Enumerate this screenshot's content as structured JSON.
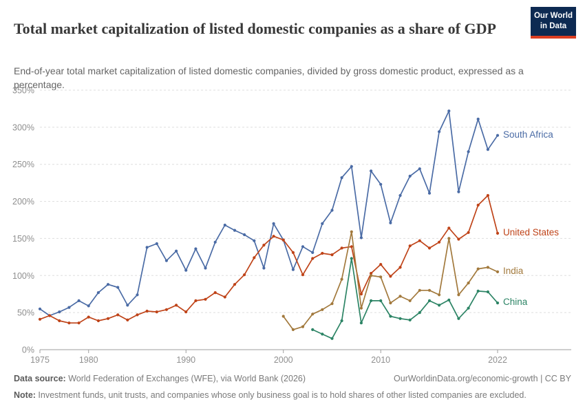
{
  "chart_data": {
    "type": "line",
    "title": "Total market capitalization of listed domestic companies as a share of GDP",
    "subtitle": "End-of-year total market capitalization of listed domestic companies, divided by gross domestic product, expressed as a percentage.",
    "frequency": "annual",
    "xlim": [
      1975,
      2022
    ],
    "ylim": [
      0,
      350
    ],
    "grid": true,
    "legend_position": "end-of-line labels",
    "x_ticks": [
      1975,
      1980,
      1990,
      2000,
      2010,
      2022
    ],
    "y_ticks": [
      0,
      50,
      100,
      150,
      200,
      250,
      300,
      350
    ],
    "y_tick_suffix": "%",
    "axis_color": "#9e9e9e",
    "grid_color": "#dddddd",
    "tick_label_color": "#8f8f8f",
    "series": [
      {
        "name": "South Africa",
        "color": "#4a6ba5",
        "start_year": 1975,
        "values": [
          55,
          46,
          51,
          57,
          66,
          59,
          77,
          88,
          84,
          60,
          74,
          138,
          143,
          120,
          133,
          107,
          136,
          110,
          145,
          168,
          161,
          155,
          147,
          110,
          170,
          148,
          108,
          139,
          131,
          170,
          188,
          232,
          247,
          151,
          241,
          223,
          171,
          208,
          234,
          244,
          211,
          294,
          322,
          213,
          267,
          311,
          270,
          289
        ]
      },
      {
        "name": "United States",
        "color": "#bf4318",
        "start_year": 1975,
        "values": [
          41,
          46,
          39,
          36,
          36,
          44,
          39,
          42,
          47,
          40,
          47,
          52,
          51,
          54,
          60,
          51,
          66,
          68,
          77,
          71,
          88,
          101,
          124,
          141,
          153,
          148,
          131,
          101,
          123,
          130,
          128,
          137,
          139,
          75,
          103,
          115,
          99,
          111,
          140,
          147,
          137,
          145,
          164,
          149,
          158,
          195,
          208,
          157
        ]
      },
      {
        "name": "India",
        "color": "#a2793c",
        "start_year": 2000,
        "values": [
          45,
          27,
          31,
          48,
          54,
          62,
          95,
          159,
          56,
          100,
          98,
          63,
          72,
          66,
          80,
          80,
          74,
          150,
          74,
          90,
          109,
          111,
          105
        ]
      },
      {
        "name": "China",
        "color": "#2c8465",
        "start_year": 2003,
        "values": [
          27,
          21,
          15,
          39,
          123,
          36,
          66,
          66,
          45,
          42,
          40,
          50,
          66,
          60,
          67,
          42,
          56,
          79,
          78,
          63
        ]
      }
    ]
  },
  "logo": {
    "line1": "Our World",
    "line2": "in Data"
  },
  "footer": {
    "datasource_label": "Data source:",
    "datasource_text": " World Federation of Exchanges (WFE), via World Bank (2026)",
    "link_text": "OurWorldinData.org/economic-growth | CC BY",
    "note_label": "Note:",
    "note_text": " Investment funds, unit trusts, and companies whose only business goal is to hold shares of other listed companies are excluded."
  }
}
